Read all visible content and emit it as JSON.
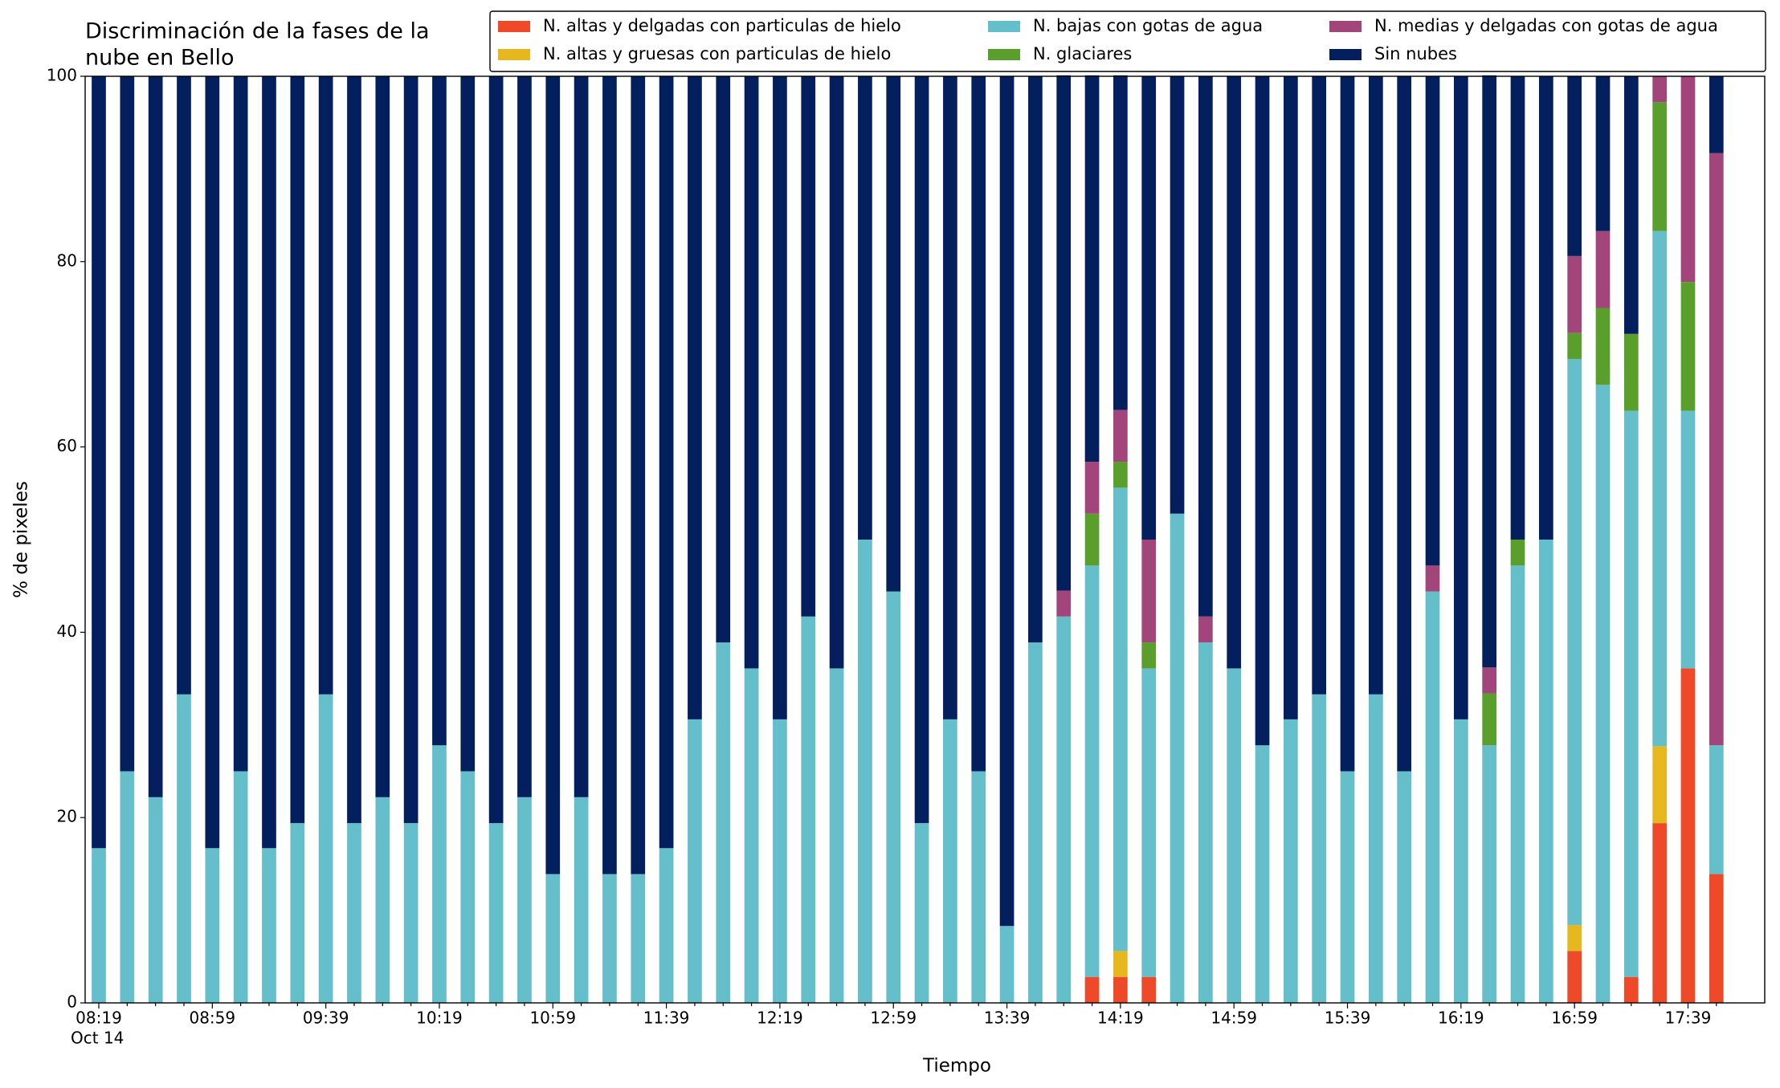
{
  "chart_data": {
    "type": "stacked_bar",
    "title": [
      "Discriminación de la fases de la",
      "nube en Bello"
    ],
    "x_label": "Tiempo",
    "y_label": "% de pixeles",
    "x_sublabel": "Oct 14",
    "categories": [
      "08:19",
      null,
      null,
      null,
      "08:59",
      null,
      null,
      null,
      "09:39",
      null,
      null,
      null,
      "10:19",
      null,
      null,
      null,
      "10:59",
      null,
      null,
      null,
      "11:39",
      null,
      null,
      null,
      "12:19",
      null,
      null,
      null,
      "12:59",
      null,
      null,
      null,
      "13:39",
      null,
      null,
      null,
      "14:19",
      null,
      null,
      null,
      "14:59",
      null,
      null,
      null,
      "15:39",
      null,
      null,
      null,
      "16:19",
      null,
      null,
      null,
      "16:59",
      null,
      null,
      null,
      "17:39",
      null
    ],
    "ylim": [
      0,
      100
    ],
    "yticks": [
      0,
      20,
      40,
      60,
      80,
      100
    ],
    "legend": "top-right",
    "legend_columns": 3,
    "series": [
      {
        "name": "N. altas y delgadas con particulas de hielo",
        "color": "#ee4a2a",
        "values": [
          0,
          0,
          0,
          0,
          0,
          0,
          0,
          0,
          0,
          0,
          0,
          0,
          0,
          0,
          0,
          0,
          0,
          0,
          0,
          0,
          0,
          0,
          0,
          0,
          0,
          0,
          0,
          0,
          0,
          0,
          0,
          0,
          0,
          0,
          0,
          2.8,
          2.8,
          2.8,
          0,
          0,
          0,
          0,
          0,
          0,
          0,
          0,
          0,
          0,
          0,
          0,
          0,
          0,
          5.6,
          0,
          2.8,
          19.4,
          36.1,
          13.9
        ]
      },
      {
        "name": "N. altas y gruesas con particulas de hielo",
        "color": "#e6b81d",
        "values": [
          0,
          0,
          0,
          0,
          0,
          0,
          0,
          0,
          0,
          0,
          0,
          0,
          0,
          0,
          0,
          0,
          0,
          0,
          0,
          0,
          0,
          0,
          0,
          0,
          0,
          0,
          0,
          0,
          0,
          0,
          0,
          0,
          0,
          0,
          0,
          0,
          2.8,
          0,
          0,
          0,
          0,
          0,
          0,
          0,
          0,
          0,
          0,
          0,
          0,
          0,
          0,
          0,
          2.8,
          0,
          0,
          8.3,
          0,
          0
        ]
      },
      {
        "name": "N. bajas con gotas de agua",
        "color": "#64bfca",
        "values": [
          16.7,
          25,
          22.2,
          33.3,
          16.7,
          25,
          16.7,
          19.4,
          33.3,
          19.4,
          22.2,
          19.4,
          27.8,
          25,
          19.4,
          22.2,
          13.9,
          22.2,
          13.9,
          13.9,
          16.7,
          30.6,
          38.9,
          36.1,
          30.6,
          41.7,
          36.1,
          50,
          44.4,
          19.4,
          30.6,
          25,
          8.3,
          38.9,
          41.7,
          44.4,
          50,
          33.3,
          52.8,
          38.9,
          36.1,
          27.8,
          30.6,
          33.3,
          25,
          33.3,
          25,
          44.4,
          30.6,
          27.8,
          47.2,
          50,
          61.1,
          66.7,
          61.1,
          55.6,
          27.8,
          13.9
        ]
      },
      {
        "name": "N. glaciares",
        "color": "#5a9e2c",
        "values": [
          0,
          0,
          0,
          0,
          0,
          0,
          0,
          0,
          0,
          0,
          0,
          0,
          0,
          0,
          0,
          0,
          0,
          0,
          0,
          0,
          0,
          0,
          0,
          0,
          0,
          0,
          0,
          0,
          0,
          0,
          0,
          0,
          0,
          0,
          0,
          5.6,
          2.8,
          2.8,
          0,
          0,
          0,
          0,
          0,
          0,
          0,
          0,
          0,
          0,
          0,
          5.6,
          2.8,
          0,
          2.8,
          8.3,
          8.3,
          13.9,
          13.9,
          0
        ]
      },
      {
        "name": "N. medias y delgadas con gotas de agua",
        "color": "#a1457a",
        "values": [
          0,
          0,
          0,
          0,
          0,
          0,
          0,
          0,
          0,
          0,
          0,
          0,
          0,
          0,
          0,
          0,
          0,
          0,
          0,
          0,
          0,
          0,
          0,
          0,
          0,
          0,
          0,
          0,
          0,
          0,
          0,
          0,
          0,
          0,
          2.8,
          5.6,
          5.6,
          11.1,
          0,
          2.8,
          0,
          0,
          0,
          0,
          0,
          0,
          0,
          2.8,
          0,
          2.8,
          0,
          0,
          8.3,
          8.3,
          0,
          2.8,
          22.2,
          63.9
        ]
      },
      {
        "name": "Sin nubes",
        "color": "#031f5e",
        "values": [
          83.3,
          75,
          77.8,
          66.7,
          83.3,
          75,
          83.3,
          80.6,
          66.7,
          80.6,
          77.8,
          80.6,
          72.2,
          75,
          80.6,
          77.8,
          86.1,
          77.8,
          86.1,
          86.1,
          83.3,
          69.4,
          61.1,
          63.9,
          69.4,
          58.3,
          63.9,
          50,
          55.6,
          80.6,
          69.4,
          75,
          91.7,
          61.1,
          55.6,
          41.7,
          36.1,
          50,
          47.2,
          58.3,
          63.9,
          72.2,
          69.4,
          66.7,
          75,
          66.7,
          75,
          52.8,
          69.4,
          63.9,
          50,
          50,
          19.4,
          16.7,
          27.8,
          0,
          0,
          8.3
        ]
      }
    ]
  }
}
